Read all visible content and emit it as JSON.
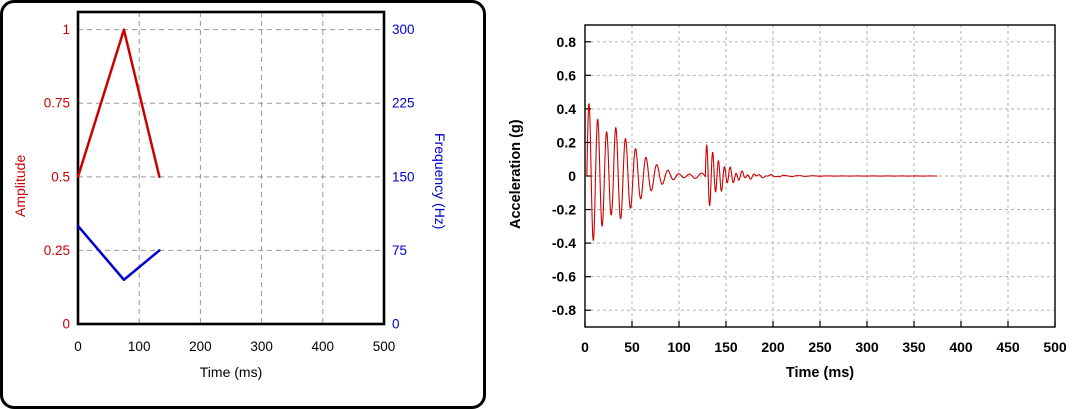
{
  "page": {
    "background": "#ffffff"
  },
  "colors": {
    "red": "#cc0000",
    "blue": "#0000cc",
    "frame": "#000000",
    "grid_left": "#999999",
    "grid_right": "#aaaaaa"
  },
  "chart_data": [
    {
      "id": "sweep-profile",
      "type": "line",
      "title": "",
      "xlabel": "Time (ms)",
      "xlim": [
        0,
        500
      ],
      "xticks": [
        0,
        100,
        200,
        300,
        400,
        500
      ],
      "xtick_labels": [
        "0",
        "100",
        "200",
        "300",
        "400",
        "500"
      ],
      "grid": true,
      "legend": "none",
      "y_axes": {
        "left": {
          "label": "Amplitude",
          "color": "#cc0000",
          "lim": [
            0,
            1.06
          ],
          "ticks": [
            0,
            0.25,
            0.5,
            0.75,
            1
          ],
          "tick_labels": [
            "0",
            "0.25",
            "0.5",
            "0.75",
            "1"
          ]
        },
        "right": {
          "label": "Frequency (Hz)",
          "color": "#0000cc",
          "lim": [
            0,
            318
          ],
          "ticks": [
            0,
            75,
            150,
            225,
            300
          ],
          "tick_labels": [
            "0",
            "75",
            "150",
            "225",
            "300"
          ]
        }
      },
      "series": [
        {
          "name": "amplitude-profile",
          "axis": "left",
          "color": "#cc0000",
          "width": 2.5,
          "x": [
            0,
            75,
            133
          ],
          "y": [
            0.5,
            1.0,
            0.5
          ]
        },
        {
          "name": "frequency-profile",
          "axis": "right",
          "color": "#0000cc",
          "width": 2.5,
          "x": [
            0,
            75,
            133
          ],
          "y": [
            100,
            45,
            75
          ]
        }
      ]
    },
    {
      "id": "acceleration-response",
      "type": "line",
      "title": "",
      "xlabel": "Time (ms)",
      "ylabel": "Acceleration (g)",
      "xlim": [
        0,
        500
      ],
      "xticks": [
        0,
        50,
        100,
        150,
        200,
        250,
        300,
        350,
        400,
        450,
        500
      ],
      "xtick_labels": [
        "0",
        "50",
        "100",
        "150",
        "200",
        "250",
        "300",
        "350",
        "400",
        "450",
        "500"
      ],
      "ylim": [
        -0.9,
        0.9
      ],
      "yticks": [
        -0.8,
        -0.6,
        -0.4,
        -0.2,
        0,
        0.2,
        0.4,
        0.6,
        0.8
      ],
      "ytick_labels": [
        "-0.8",
        "-0.6",
        "-0.4",
        "-0.2",
        "0",
        "0.2",
        "0.4",
        "0.6",
        "0.8"
      ],
      "grid": true,
      "series": [
        {
          "name": "acceleration-signal",
          "color": "#cc0000",
          "width": 1.1,
          "synth": {
            "description": "Damped oscillatory shock trace: initial burst peaking ~+0.45/-0.35 g within first 20 ms decaying to ~0.05 g by 100 ms, secondary burst of ~+/-0.2 g near 130-170 ms, then near-zero flat trace ending at ~375 ms",
            "t_start": 0,
            "t_end": 375,
            "dt": 0.4,
            "bursts": [
              {
                "t0": 2,
                "amp": 0.46,
                "tau": 38,
                "f0": 110,
                "f1": 70,
                "sweep_ms": 130
              },
              {
                "t0": 30,
                "amp": 0.09,
                "tau": 50,
                "f0": 95,
                "f1": 65,
                "sweep_ms": 90
              },
              {
                "t0": 128,
                "amp": 0.22,
                "tau": 16,
                "f0": 160,
                "f1": 160,
                "sweep_ms": 1
              }
            ]
          }
        }
      ]
    }
  ]
}
